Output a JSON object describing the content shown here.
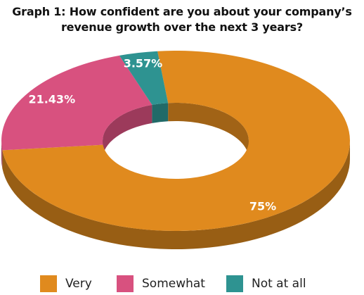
{
  "chart_data": {
    "type": "pie",
    "title_lines": [
      "Graph 1: How confident are you about your company’s",
      "revenue growth over the next 3 years?"
    ],
    "slices": [
      {
        "label": "Very",
        "value": 75,
        "value_label": "75%",
        "color": "#E08A1E"
      },
      {
        "label": "Somewhat",
        "value": 21.43,
        "value_label": "21.43%",
        "color": "#D8517F"
      },
      {
        "label": "Not at all",
        "value": 3.57,
        "value_label": "3.57%",
        "color": "#2E9391"
      }
    ],
    "style": "3d-donut",
    "legend_position": "bottom"
  }
}
